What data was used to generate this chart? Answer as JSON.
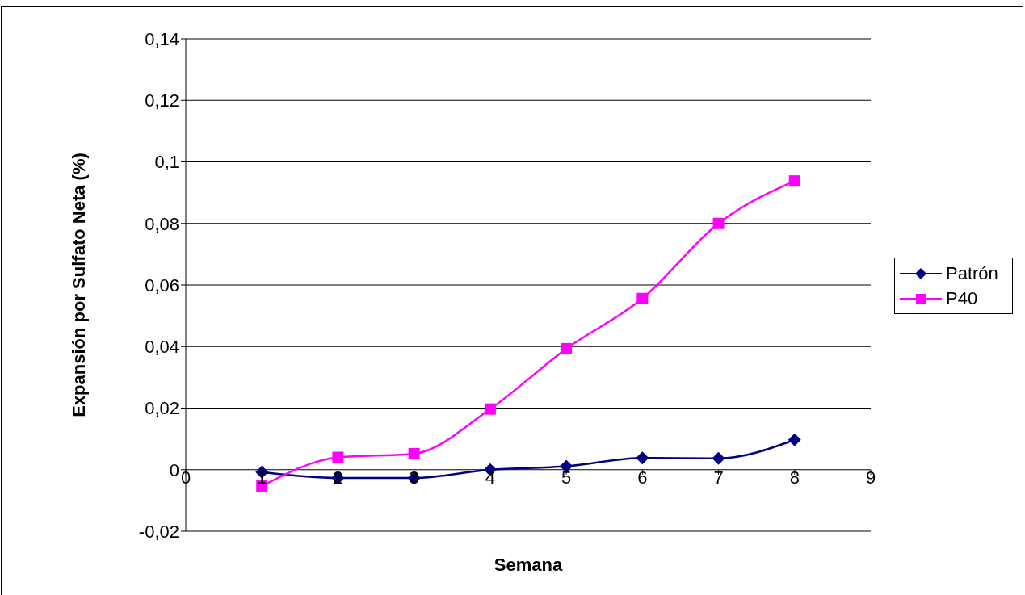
{
  "chart_data": {
    "type": "line",
    "xlabel": "Semana",
    "ylabel": "Expansión por Sulfato Neta (%)",
    "x": [
      1,
      2,
      3,
      4,
      5,
      6,
      7,
      8
    ],
    "series": [
      {
        "name": "Patrón",
        "color": "#000080",
        "marker": "diamond",
        "values": [
          -0.0008,
          -0.0027,
          -0.0027,
          0,
          0.0011,
          0.0038,
          0.0037,
          0.0097
        ]
      },
      {
        "name": "P40",
        "color": "#ff00ff",
        "marker": "square",
        "values": [
          -0.0053,
          0.004,
          0.0052,
          0.0197,
          0.0393,
          0.0556,
          0.08,
          0.0938
        ]
      }
    ],
    "xlim": [
      0,
      9
    ],
    "xticks": [
      0,
      1,
      2,
      3,
      4,
      5,
      6,
      7,
      8,
      9
    ],
    "ylim": [
      -0.02,
      0.14
    ],
    "yticks": [
      {
        "value": -0.02,
        "label": "-0,02"
      },
      0,
      {
        "value": 0.02,
        "label": "0,02"
      },
      {
        "value": 0.04,
        "label": "0,04"
      },
      {
        "value": 0.06,
        "label": "0,06"
      },
      {
        "value": 0.08,
        "label": "0,08"
      },
      {
        "value": 0.1,
        "label": "0,1"
      },
      {
        "value": 0.12,
        "label": "0,12"
      },
      {
        "value": 0.14,
        "label": "0,14"
      }
    ],
    "grid": "y",
    "legend": "right",
    "line_style": "solid"
  }
}
